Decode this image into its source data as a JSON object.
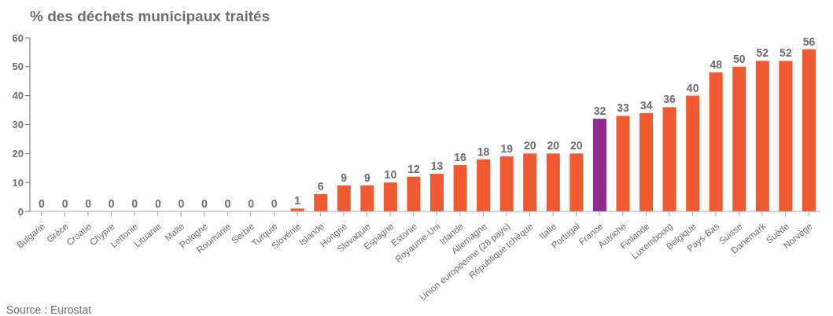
{
  "chart_data": {
    "type": "bar",
    "title": "% des déchets municipaux traités",
    "categories": [
      "Bulgarie",
      "Grèce",
      "Croatie",
      "Chypre",
      "Lettonie",
      "Lituanie",
      "Malte",
      "Pologne",
      "Roumanie",
      "Serbie",
      "Turquie",
      "Slovénie",
      "Islande",
      "Hongrie",
      "Slovaquie",
      "Espagne",
      "Estonie",
      "Royaume-Uni",
      "Irlande",
      "Allemagne",
      "Union européenne (28 pays)",
      "République tchèque",
      "Italie",
      "Portugal",
      "France",
      "Autriche",
      "Finlande",
      "Luxembourg",
      "Belgique",
      "Pays-Bas",
      "Suisse",
      "Danemark",
      "Suède",
      "Norvège"
    ],
    "values": [
      0,
      0,
      0,
      0,
      0,
      0,
      0,
      0,
      0,
      0,
      0,
      1,
      6,
      9,
      9,
      10,
      12,
      13,
      16,
      18,
      19,
      20,
      20,
      20,
      32,
      33,
      34,
      36,
      40,
      48,
      50,
      52,
      52,
      56
    ],
    "colors": [
      "#f05a30",
      "#f05a30",
      "#f05a30",
      "#f05a30",
      "#f05a30",
      "#f05a30",
      "#f05a30",
      "#f05a30",
      "#f05a30",
      "#f05a30",
      "#f05a30",
      "#f05a30",
      "#f05a30",
      "#f05a30",
      "#f05a30",
      "#f05a30",
      "#f05a30",
      "#f05a30",
      "#f05a30",
      "#f05a30",
      "#f05a30",
      "#f05a30",
      "#f05a30",
      "#f05a30",
      "#922b8e",
      "#f05a30",
      "#f05a30",
      "#f05a30",
      "#f05a30",
      "#f05a30",
      "#f05a30",
      "#f05a30",
      "#f05a30",
      "#f05a30"
    ],
    "ylim": [
      0,
      60
    ],
    "yticks": [
      0,
      10,
      20,
      30,
      40,
      50,
      60
    ],
    "grid": false,
    "data_labels": true,
    "annotations": [
      "Source : Eurostat"
    ]
  }
}
